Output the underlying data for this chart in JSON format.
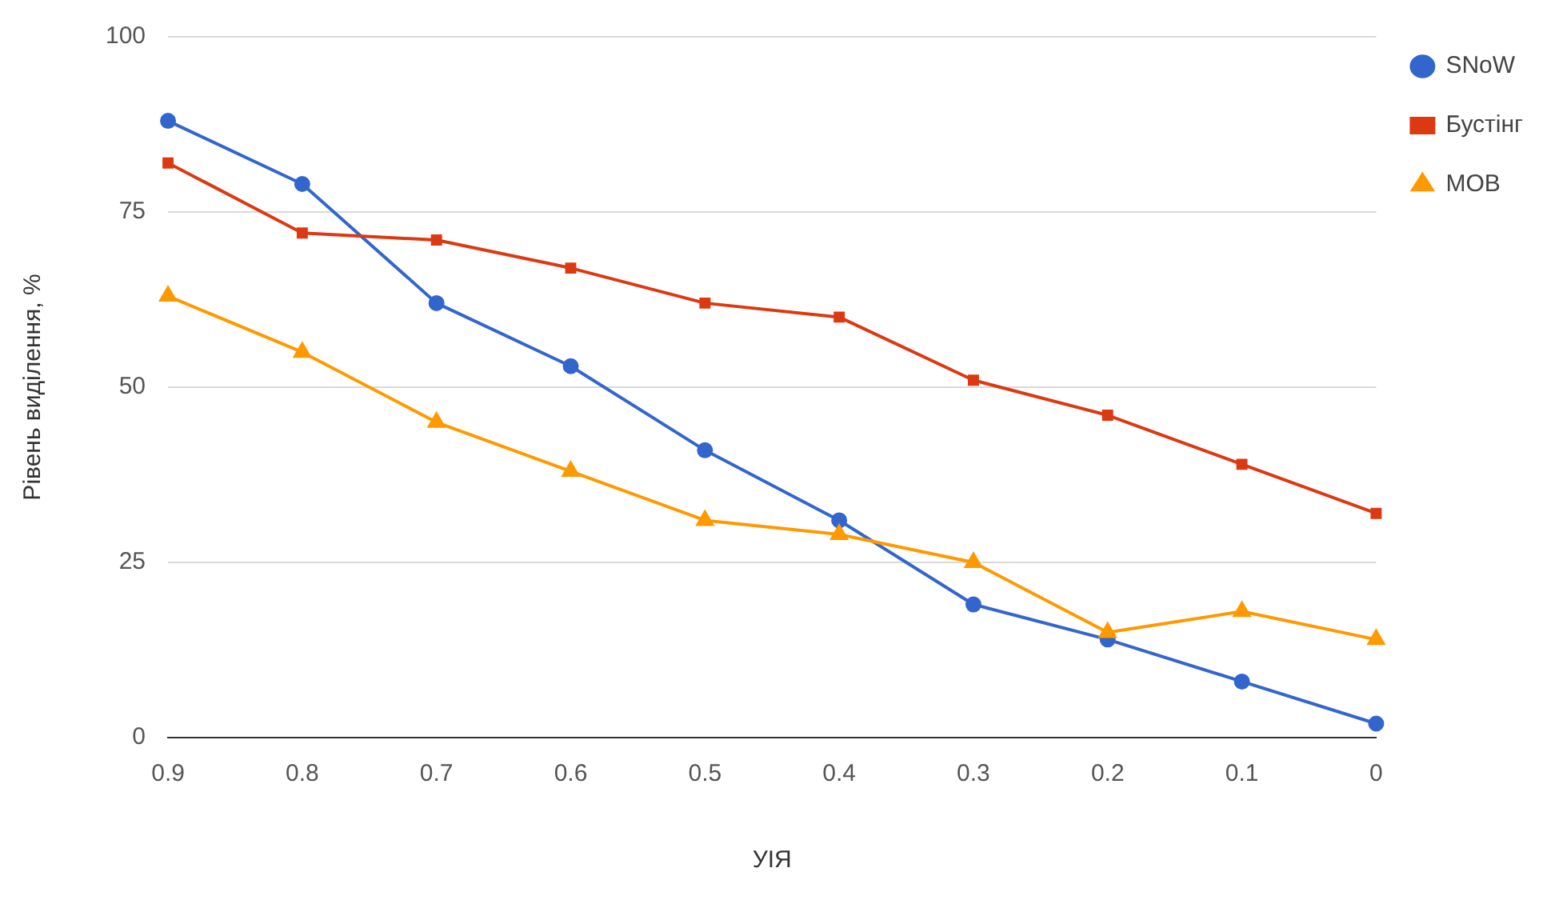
{
  "chart_data": {
    "type": "line",
    "xlabel": "УІЯ",
    "ylabel": "Рівень виділення, %",
    "categories": [
      "0.9",
      "0.8",
      "0.7",
      "0.6",
      "0.5",
      "0.4",
      "0.3",
      "0.2",
      "0.1",
      "0"
    ],
    "series": [
      {
        "name": "SNoW",
        "color": "#3366cc",
        "marker": "circle",
        "values": [
          88,
          79,
          62,
          53,
          41,
          31,
          19,
          14,
          8,
          2
        ]
      },
      {
        "name": "Бустінг",
        "color": "#dc3912",
        "marker": "square",
        "values": [
          82,
          72,
          71,
          67,
          62,
          60,
          51,
          46,
          39,
          32
        ]
      },
      {
        "name": "МОВ",
        "color": "#ff9900",
        "marker": "triangle",
        "values": [
          63,
          55,
          45,
          38,
          31,
          29,
          25,
          15,
          18,
          14
        ]
      }
    ],
    "ylim": [
      0,
      100
    ],
    "yticks": [
      0,
      25,
      50,
      75,
      100
    ],
    "grid": "y",
    "legend": "top right",
    "line_style": "solid"
  }
}
